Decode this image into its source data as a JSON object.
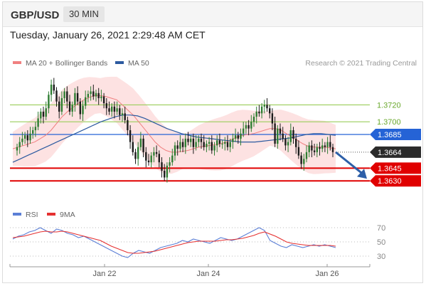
{
  "header": {
    "symbol": "GBP/USD",
    "timeframe": "30 MIN",
    "timestamp": "Tuesday, January 26, 2021 2:29:48 AM CET"
  },
  "legend": {
    "items": [
      {
        "label": "MA 20 + Bollinger Bands",
        "color": "#f08080"
      },
      {
        "label": "MA 50",
        "color": "#2c5aa0"
      }
    ],
    "credit": "Research © 2021 Trading Central"
  },
  "rsi_legend": {
    "items": [
      {
        "label": "RSI",
        "color": "#5b7fd6"
      },
      {
        "label": "9MA",
        "color": "#e53030"
      }
    ]
  },
  "colors": {
    "up_candle": "#2e7d32",
    "down_candle": "#1b1b1b",
    "resistance": "#9acd5a",
    "pivot": "#2563d6",
    "support": "#e00000",
    "band_fill": "#fde2e2",
    "ma20": "#f08080",
    "ma50": "#2c5aa0",
    "rsi": "#5b7fd6",
    "rsi_ma": "#e53030",
    "last_price": "#2b2b2b",
    "forecast_arrow": "#2d5fa8"
  },
  "chart_data": [
    {
      "type": "candlestick",
      "title": "GBP/USD",
      "x_ticks": [
        "Jan 22",
        "Jan 24",
        "Jan 26"
      ],
      "ylim": [
        1.3615,
        1.376
      ],
      "levels": [
        {
          "value": 1.372,
          "label": "1.3720",
          "kind": "resistance"
        },
        {
          "value": 1.37,
          "label": "1.3700",
          "kind": "resistance"
        },
        {
          "value": 1.3685,
          "label": "1.3685",
          "kind": "pivot"
        },
        {
          "value": 1.3664,
          "label": "1.3664",
          "kind": "last_price"
        },
        {
          "value": 1.3645,
          "label": "1.3645",
          "kind": "support"
        },
        {
          "value": 1.363,
          "label": "1.3630",
          "kind": "support"
        }
      ],
      "close": [
        1.367,
        1.3676,
        1.368,
        1.3684,
        1.3678,
        1.3686,
        1.369,
        1.3694,
        1.3704,
        1.3712,
        1.3706,
        1.3716,
        1.3732,
        1.3744,
        1.3737,
        1.3724,
        1.3712,
        1.3728,
        1.3736,
        1.3724,
        1.3712,
        1.372,
        1.3734,
        1.3724,
        1.3709,
        1.3719,
        1.3729,
        1.3733,
        1.3736,
        1.373,
        1.3734,
        1.3728,
        1.373,
        1.3722,
        1.3716,
        1.3712,
        1.3718,
        1.3712,
        1.3716,
        1.3708,
        1.371,
        1.3702,
        1.369,
        1.3676,
        1.3664,
        1.3656,
        1.367,
        1.368,
        1.3664,
        1.3654,
        1.3652,
        1.366,
        1.3664,
        1.3662,
        1.3652,
        1.3642,
        1.3634,
        1.3648,
        1.3652,
        1.366,
        1.3672,
        1.3668,
        1.3676,
        1.367,
        1.368,
        1.3676,
        1.368,
        1.367,
        1.3676,
        1.368,
        1.3676,
        1.367,
        1.3674,
        1.3676,
        1.3666,
        1.3672,
        1.3678,
        1.3674,
        1.3674,
        1.3676,
        1.367,
        1.3676,
        1.368,
        1.3684,
        1.368,
        1.3686,
        1.3692,
        1.3696,
        1.3692,
        1.37,
        1.3706,
        1.3712,
        1.371,
        1.3718,
        1.372,
        1.3716,
        1.371,
        1.3698,
        1.3674,
        1.3692,
        1.3686,
        1.368,
        1.3672,
        1.3676,
        1.369,
        1.368,
        1.367,
        1.366,
        1.365,
        1.3656,
        1.3664,
        1.3672,
        1.3666,
        1.3664,
        1.367,
        1.3668,
        1.3672,
        1.367,
        1.3676,
        1.367,
        1.3664
      ],
      "ma_20": [
        1.3668,
        1.367,
        1.3672,
        1.3674,
        1.3676,
        1.368,
        1.3684,
        1.369,
        1.3698,
        1.3706,
        1.3712,
        1.3717,
        1.3722,
        1.3726,
        1.3729,
        1.3731,
        1.3731,
        1.373,
        1.3728,
        1.3726,
        1.372,
        1.3714,
        1.3708,
        1.37,
        1.3692,
        1.3684,
        1.3676,
        1.367,
        1.3666,
        1.3664,
        1.3664,
        1.3665,
        1.3666,
        1.3668,
        1.367,
        1.3671,
        1.3672,
        1.3673,
        1.3674,
        1.3676,
        1.3679,
        1.3682,
        1.3684,
        1.3685,
        1.3686,
        1.3688,
        1.369,
        1.3692,
        1.3692,
        1.369,
        1.3686,
        1.3682,
        1.3678,
        1.3674,
        1.3671,
        1.367,
        1.367,
        1.367,
        1.3669,
        1.3668
      ],
      "ma_50": [
        1.3652,
        1.3656,
        1.366,
        1.3664,
        1.3668,
        1.3672,
        1.3676,
        1.368,
        1.3684,
        1.3688,
        1.3692,
        1.3696,
        1.37,
        1.3703,
        1.3706,
        1.3708,
        1.3708,
        1.3707,
        1.3704,
        1.37,
        1.3696,
        1.3692,
        1.3689,
        1.3686,
        1.3684,
        1.3682,
        1.3681,
        1.368,
        1.3679,
        1.3678,
        1.3677,
        1.3676,
        1.3676,
        1.3676,
        1.3677,
        1.3678,
        1.3679,
        1.368,
        1.3681,
        1.3683,
        1.3685,
        1.3686,
        1.3686,
        1.3685,
        1.3684
      ]
    },
    {
      "type": "line",
      "title": "RSI",
      "y_ticks": [
        70,
        50,
        30
      ],
      "ylim": [
        20,
        80
      ],
      "series": [
        {
          "name": "RSI",
          "values": [
            54,
            58,
            60,
            64,
            66,
            70,
            66,
            62,
            68,
            66,
            62,
            60,
            56,
            58,
            54,
            50,
            46,
            42,
            38,
            34,
            30,
            28,
            34,
            38,
            36,
            34,
            38,
            42,
            44,
            46,
            48,
            52,
            50,
            54,
            52,
            50,
            48,
            52,
            56,
            54,
            52,
            54,
            58,
            62,
            66,
            70,
            66,
            52,
            48,
            44,
            42,
            46,
            44,
            42,
            44,
            46,
            44,
            46,
            44,
            42
          ]
        },
        {
          "name": "9MA",
          "values": [
            56,
            57,
            58,
            60,
            62,
            64,
            65,
            64,
            64,
            65,
            64,
            62,
            60,
            58,
            56,
            54,
            52,
            48,
            44,
            41,
            38,
            35,
            34,
            34,
            35,
            36,
            37,
            39,
            41,
            43,
            45,
            47,
            49,
            50,
            51,
            51,
            51,
            51,
            52,
            53,
            53,
            54,
            55,
            57,
            59,
            62,
            64,
            61,
            58,
            54,
            50,
            48,
            47,
            46,
            45,
            45,
            45,
            45,
            45,
            44
          ]
        }
      ]
    }
  ]
}
